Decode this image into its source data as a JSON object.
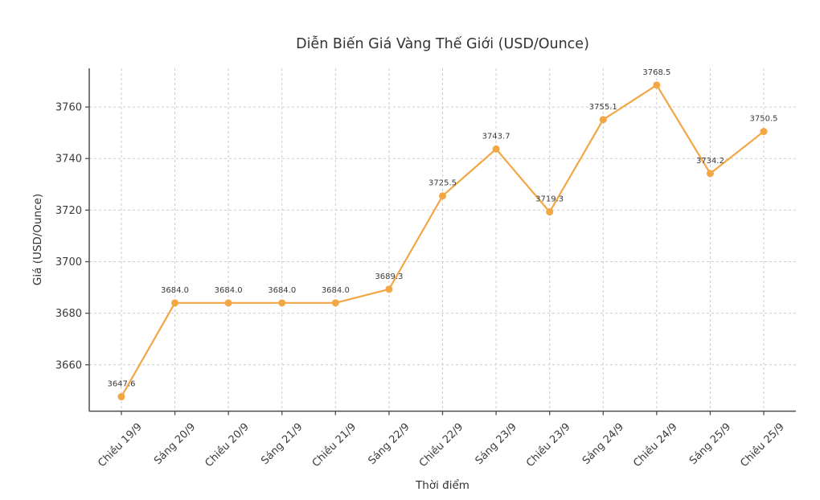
{
  "chart_data": {
    "type": "line",
    "title": "Diễn Biến Giá Vàng Thế Giới (USD/Ounce)",
    "xlabel": "Thời điểm",
    "ylabel": "Giá (USD/Ounce)",
    "categories": [
      "Chiều 19/9",
      "Sáng 20/9",
      "Chiều 20/9",
      "Sáng 21/9",
      "Chiều 21/9",
      "Sáng 22/9",
      "Chiều 22/9",
      "Sáng 23/9",
      "Chiều 23/9",
      "Sáng 24/9",
      "Chiều 24/9",
      "Sáng 25/9",
      "Chiều 25/9"
    ],
    "values": [
      3647.6,
      3684.0,
      3684.0,
      3684.0,
      3684.0,
      3689.3,
      3725.5,
      3743.7,
      3719.3,
      3755.1,
      3768.5,
      3734.2,
      3750.5
    ],
    "point_labels": [
      "3647.6",
      "3684.0",
      "3684.0",
      "3684.0",
      "3684.0",
      "3689.3",
      "3725.5",
      "3743.7",
      "3719.3",
      "3755.1",
      "3768.5",
      "3734.2",
      "3750.5"
    ],
    "yticks": [
      3660,
      3680,
      3700,
      3720,
      3740,
      3760
    ],
    "ylim": [
      3642,
      3775
    ],
    "grid": true,
    "grid_style": "dashed",
    "legend": false,
    "marker": "circle",
    "colors": {
      "line": "#F2A644",
      "marker": "#F2A644",
      "grid": "#cccccc",
      "axis": "#4d4d4d",
      "text": "#3a3a3a",
      "background": "#ffffff"
    }
  }
}
